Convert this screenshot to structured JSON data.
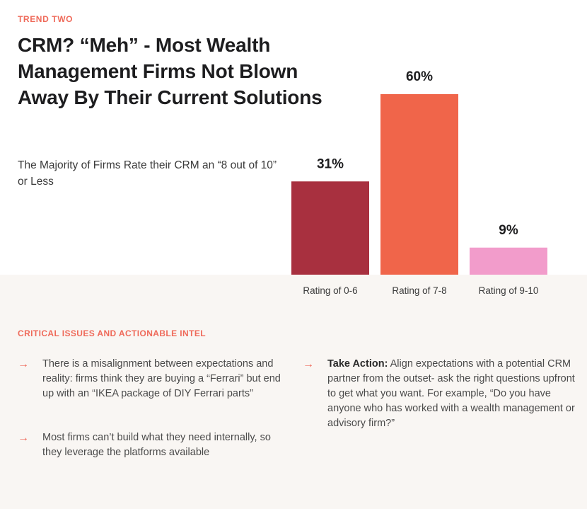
{
  "eyebrow": "TREND TWO",
  "title": "CRM? “Meh” - Most Wealth Management Firms Not Blown Away By Their Current Solutions",
  "subtitle": "The Majority of Firms Rate their CRM an “8 out of 10” or Less",
  "chart_data": {
    "type": "bar",
    "title": "The Majority of Firms Rate their CRM an “8 out of 10” or Less",
    "categories": [
      "Rating of 0-6",
      "Rating of 7-8",
      "Rating of 9-10"
    ],
    "values": [
      31,
      60,
      9
    ],
    "labels": [
      "31%",
      "60%",
      "9%"
    ],
    "colors": [
      "#a8303f",
      "#f0654a",
      "#f29ccb"
    ],
    "xlabel": "",
    "ylabel": "",
    "ylim": [
      0,
      60
    ],
    "grid": false,
    "legend": "none"
  },
  "section": {
    "heading": "CRITICAL ISSUES AND ACTIONABLE INTEL",
    "arrow_icon": "→",
    "bullets": [
      {
        "text": "There is a misalignment between expectations and reality: firms think they are buying a “Ferrari” but end up with an “IKEA package of DIY Ferrari parts”"
      },
      {
        "text": "Most firms can’t build what they need internally, so they leverage the platforms available"
      }
    ],
    "action": {
      "lead": "Take Action:",
      "text": " Align expectations with a potential CRM partner from the outset- ask the right questions upfront to get what you want. For example, “Do you have anyone who has worked with a wealth management or advisory firm?”"
    }
  }
}
